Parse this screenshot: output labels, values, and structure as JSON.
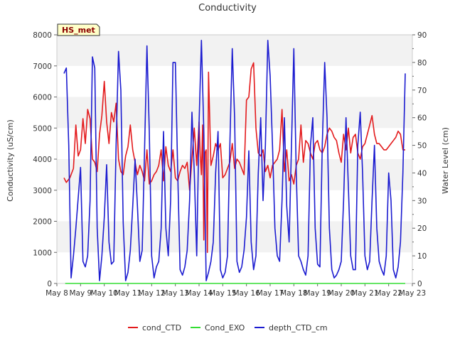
{
  "chart_data": {
    "type": "line",
    "title": "Conductivity",
    "site_label": "HS_met",
    "xlabel": "",
    "ylabel": "Conductivity (uS/cm)",
    "y2label": "Water Level (cm)",
    "x_ticks": [
      "May 8",
      "May 9",
      "May 10",
      "May 11",
      "May 12",
      "May 13",
      "May 14",
      "May 15",
      "May 16",
      "May 17",
      "May 18",
      "May 19",
      "May 20",
      "May 21",
      "May 22",
      "May 23"
    ],
    "xlim": [
      0,
      15
    ],
    "ylim": [
      0,
      8000
    ],
    "y_ticks": [
      0,
      1000,
      2000,
      3000,
      4000,
      5000,
      6000,
      7000,
      8000
    ],
    "y2lim": [
      0,
      90
    ],
    "y2_ticks": [
      0,
      10,
      20,
      30,
      40,
      50,
      60,
      70,
      80,
      90
    ],
    "bands": [
      [
        1000,
        2000
      ],
      [
        3000,
        4000
      ],
      [
        5000,
        6000
      ],
      [
        7000,
        8000
      ]
    ],
    "series": [
      {
        "name": "cond_CTD",
        "axis": "left",
        "color": "#e31a1c",
        "x": [
          0.3,
          0.4,
          0.55,
          0.7,
          0.8,
          0.9,
          1.0,
          1.1,
          1.2,
          1.3,
          1.4,
          1.5,
          1.6,
          1.7,
          1.8,
          1.9,
          2.0,
          2.1,
          2.2,
          2.3,
          2.4,
          2.5,
          2.6,
          2.7,
          2.8,
          2.9,
          3.0,
          3.1,
          3.2,
          3.3,
          3.4,
          3.5,
          3.6,
          3.7,
          3.8,
          3.9,
          4.0,
          4.1,
          4.2,
          4.3,
          4.4,
          4.5,
          4.6,
          4.7,
          4.8,
          4.9,
          5.0,
          5.1,
          5.2,
          5.3,
          5.4,
          5.5,
          5.6,
          5.7,
          5.8,
          5.9,
          6.0,
          6.05,
          6.1,
          6.15,
          6.2,
          6.25,
          6.3,
          6.35,
          6.4,
          6.5,
          6.6,
          6.7,
          6.8,
          6.9,
          7.0,
          7.1,
          7.2,
          7.3,
          7.4,
          7.5,
          7.6,
          7.7,
          7.8,
          7.9,
          8.0,
          8.1,
          8.2,
          8.3,
          8.4,
          8.5,
          8.6,
          8.7,
          8.8,
          8.9,
          9.0,
          9.1,
          9.2,
          9.3,
          9.4,
          9.5,
          9.6,
          9.7,
          9.8,
          9.9,
          10.0,
          10.1,
          10.2,
          10.3,
          10.4,
          10.5,
          10.6,
          10.7,
          10.8,
          10.9,
          11.0,
          11.1,
          11.2,
          11.3,
          11.4,
          11.5,
          11.6,
          11.7,
          11.8,
          11.9,
          12.0,
          12.1,
          12.2,
          12.3,
          12.4,
          12.5,
          12.6,
          12.7,
          12.8,
          12.9,
          13.0,
          13.1,
          13.2,
          13.3,
          13.4,
          13.5,
          13.6,
          13.7,
          13.8,
          13.9,
          14.0,
          14.1,
          14.2,
          14.3,
          14.4,
          14.5,
          14.6,
          14.7
        ],
        "y": [
          3400,
          3250,
          3400,
          3700,
          5100,
          4100,
          4300,
          5300,
          4500,
          5600,
          5300,
          4000,
          3900,
          3600,
          4800,
          5400,
          6500,
          5200,
          4500,
          5500,
          5200,
          5800,
          4000,
          3600,
          3500,
          4100,
          4400,
          5100,
          4300,
          3900,
          3500,
          3800,
          3600,
          3300,
          4300,
          3200,
          3300,
          3500,
          3600,
          3800,
          4300,
          3300,
          4400,
          3800,
          3600,
          4300,
          3400,
          3300,
          3600,
          3800,
          3700,
          3900,
          3000,
          4000,
          5000,
          3800,
          5200,
          4100,
          3500,
          5100,
          1400,
          4200,
          4300,
          1000,
          6800,
          3800,
          4100,
          4500,
          4300,
          4500,
          3400,
          3500,
          3700,
          3900,
          4500,
          3700,
          4000,
          3900,
          3700,
          3500,
          5900,
          6000,
          6900,
          7100,
          5000,
          4200,
          4100,
          4300,
          3600,
          3800,
          3400,
          3800,
          3900,
          4000,
          4300,
          5600,
          3600,
          4300,
          3300,
          3500,
          3200,
          3800,
          4000,
          5100,
          3900,
          4600,
          4500,
          4200,
          4000,
          4500,
          4600,
          4300,
          4200,
          4400,
          4800,
          5000,
          4900,
          4700,
          4600,
          4200,
          3900,
          4800,
          4300,
          5000,
          4200,
          4700,
          4800,
          4200,
          4000,
          4400,
          4500,
          4800,
          5100,
          5400,
          4800,
          4500,
          4500,
          4400,
          4300,
          4300,
          4400,
          4500,
          4600,
          4700,
          4900,
          4800,
          4300,
          4300
        ]
      },
      {
        "name": "Cond_EXO",
        "axis": "left",
        "color": "#33dd33",
        "x": [
          0.35,
          14.7
        ],
        "y": [
          0,
          0
        ]
      },
      {
        "name": "depth_CTD_cm",
        "axis": "right",
        "color": "#1c1cd0",
        "x": [
          0.3,
          0.4,
          0.5,
          0.6,
          0.7,
          0.8,
          1.0,
          1.1,
          1.2,
          1.3,
          1.4,
          1.5,
          1.6,
          1.7,
          1.8,
          1.9,
          2.0,
          2.1,
          2.2,
          2.3,
          2.4,
          2.5,
          2.6,
          2.7,
          2.8,
          2.9,
          3.0,
          3.1,
          3.2,
          3.3,
          3.4,
          3.5,
          3.6,
          3.7,
          3.8,
          3.9,
          4.0,
          4.1,
          4.2,
          4.3,
          4.4,
          4.5,
          4.6,
          4.7,
          4.8,
          4.9,
          5.0,
          5.1,
          5.2,
          5.3,
          5.4,
          5.5,
          5.6,
          5.7,
          5.8,
          5.9,
          6.0,
          6.1,
          6.2,
          6.3,
          6.4,
          6.5,
          6.6,
          6.7,
          6.8,
          6.9,
          7.0,
          7.1,
          7.2,
          7.3,
          7.4,
          7.5,
          7.6,
          7.7,
          7.8,
          7.9,
          8.0,
          8.1,
          8.2,
          8.3,
          8.4,
          8.5,
          8.6,
          8.7,
          8.8,
          8.9,
          9.0,
          9.1,
          9.2,
          9.3,
          9.4,
          9.5,
          9.6,
          9.7,
          9.8,
          9.9,
          10.0,
          10.1,
          10.2,
          10.3,
          10.4,
          10.5,
          10.6,
          10.7,
          10.8,
          10.9,
          11.0,
          11.1,
          11.2,
          11.3,
          11.4,
          11.5,
          11.6,
          11.7,
          11.8,
          11.9,
          12.0,
          12.1,
          12.2,
          12.3,
          12.4,
          12.5,
          12.6,
          12.7,
          12.8,
          12.9,
          13.0,
          13.1,
          13.2,
          13.3,
          13.4,
          13.5,
          13.6,
          13.7,
          13.8,
          13.9,
          14.0,
          14.1,
          14.2,
          14.3,
          14.4,
          14.5,
          14.6,
          14.7
        ],
        "y": [
          76,
          78,
          50,
          2,
          10,
          20,
          42,
          8,
          6,
          10,
          30,
          82,
          78,
          20,
          1,
          10,
          24,
          43,
          15,
          7,
          8,
          50,
          84,
          70,
          22,
          1,
          4,
          12,
          28,
          45,
          28,
          8,
          12,
          48,
          86,
          55,
          10,
          2,
          6,
          8,
          20,
          55,
          20,
          10,
          30,
          80,
          80,
          40,
          5,
          3,
          6,
          12,
          30,
          62,
          40,
          10,
          58,
          88,
          55,
          1,
          4,
          8,
          15,
          40,
          55,
          5,
          2,
          4,
          10,
          50,
          85,
          60,
          8,
          4,
          6,
          12,
          24,
          48,
          15,
          5,
          10,
          40,
          60,
          30,
          50,
          88,
          75,
          50,
          20,
          10,
          8,
          30,
          60,
          28,
          15,
          50,
          85,
          40,
          10,
          8,
          5,
          3,
          10,
          50,
          60,
          20,
          7,
          6,
          50,
          80,
          60,
          20,
          5,
          2,
          3,
          5,
          8,
          30,
          60,
          35,
          10,
          5,
          5,
          50,
          62,
          40,
          10,
          5,
          8,
          30,
          50,
          20,
          8,
          5,
          3,
          10,
          40,
          30,
          5,
          2,
          6,
          15,
          40,
          76
        ]
      }
    ],
    "legend": [
      "cond_CTD",
      "Cond_EXO",
      "depth_CTD_cm"
    ],
    "legend_position": "bottom-center",
    "grid": "horizontal-bands"
  }
}
